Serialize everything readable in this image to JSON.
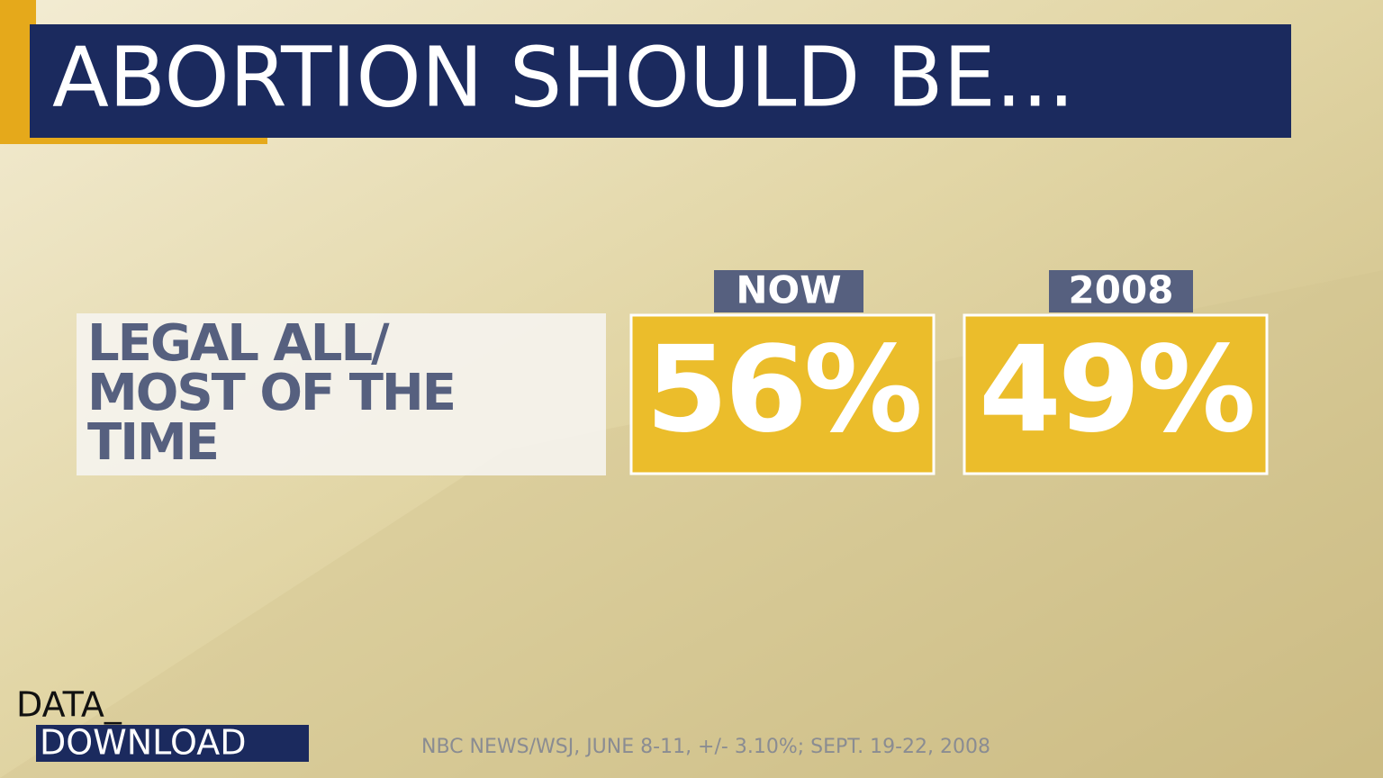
{
  "header": {
    "title": "ABORTION SHOULD BE..."
  },
  "row": {
    "label_lines": [
      "LEGAL ALL/",
      "MOST OF THE",
      "TIME"
    ]
  },
  "columns": [
    {
      "header": "NOW",
      "value": "56%"
    },
    {
      "header": "2008",
      "value": "49%"
    }
  ],
  "logo": {
    "line1": "DATA_",
    "line2": "DOWNLOAD"
  },
  "source": "NBC NEWS/WSJ, JUNE 8-11, +/- 3.10%; SEPT. 19-22, 2008"
}
